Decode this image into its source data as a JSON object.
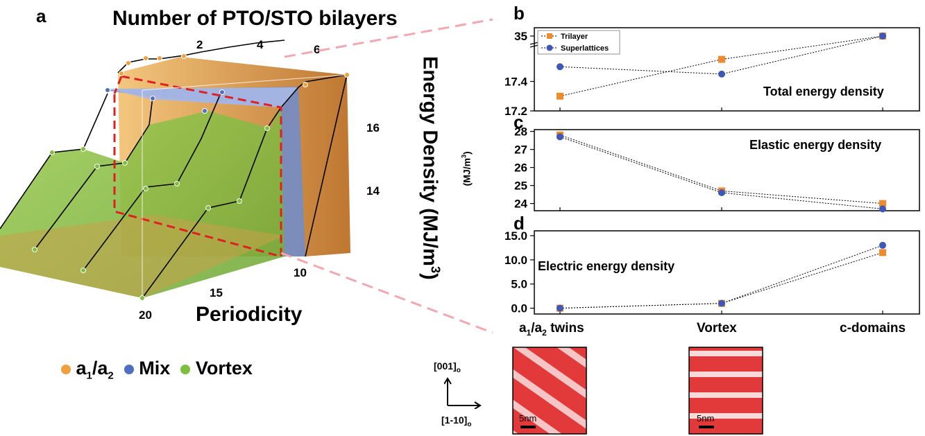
{
  "panel_a": {
    "letter": "a",
    "title": "Number of PTO/STO bilayers",
    "top_ticks": [
      "2",
      "4",
      "6"
    ],
    "z_label": "Energy Density (MJ/m",
    "z_label_sup": "3",
    "z_label_end": ")",
    "z_ticks": [
      "16",
      "14"
    ],
    "x_label": "Periodicity",
    "x_ticks": [
      "10",
      "15",
      "20"
    ],
    "legend": [
      {
        "label_main": "a",
        "sub1": "1",
        "mid": "/a",
        "sub2": "2",
        "color": "#f0a040"
      },
      {
        "label_main": "Mix",
        "color": "#4f6fc0"
      },
      {
        "label_main": "Vortex",
        "color": "#7fbf3f"
      }
    ]
  },
  "shared_axis": {
    "y_label": "(MJ/m",
    "y_label_sup": "3",
    "y_label_end": ")",
    "categories": [
      "a",
      "Vortex",
      "c-domains"
    ],
    "cat0_sub1": "1",
    "cat0_mid": "/a",
    "cat0_sub2": "2",
    "cat0_end": " twins"
  },
  "colors": {
    "trilayer": "#f08a2e",
    "superlattices": "#3f57b5",
    "orange_surface": "#d98a2a",
    "blue_surface": "#4f6fc0",
    "green_surface": "#8ac24a",
    "dash_red": "#e02020"
  },
  "chart_data": [
    {
      "panel": "b",
      "type": "line",
      "annotation": "Total energy density",
      "yticks": [
        "35",
        "17.4",
        "17.2"
      ],
      "series": [
        {
          "name": "Trilayer",
          "values": [
            17.3,
            17.55,
            35
          ]
        },
        {
          "name": "Superlattices",
          "values": [
            17.5,
            17.45,
            35
          ]
        }
      ],
      "broken_axis": true
    },
    {
      "panel": "c",
      "type": "line",
      "annotation": "Elastic energy density",
      "ylim": [
        23.6,
        28.1
      ],
      "yticks": [
        24,
        25,
        26,
        27,
        28
      ],
      "series": [
        {
          "name": "Trilayer",
          "values": [
            27.8,
            24.7,
            24.0
          ]
        },
        {
          "name": "Superlattices",
          "values": [
            27.7,
            24.6,
            23.7
          ]
        }
      ]
    },
    {
      "panel": "d",
      "type": "line",
      "annotation": "Electric energy density",
      "ylim": [
        -1.2,
        16
      ],
      "yticks": [
        "0.0",
        "5.0",
        "10.0",
        "15.0"
      ],
      "series": [
        {
          "name": "Trilayer",
          "values": [
            0,
            1.0,
            11.5
          ]
        },
        {
          "name": "Superlattices",
          "values": [
            0,
            1.0,
            13.0
          ]
        }
      ]
    }
  ],
  "insets": {
    "axis_up": "[001]",
    "axis_up_sub": "o",
    "axis_right": "[1-10]",
    "axis_right_sub": "o",
    "scale1": "5nm",
    "scale2": "5nm"
  }
}
